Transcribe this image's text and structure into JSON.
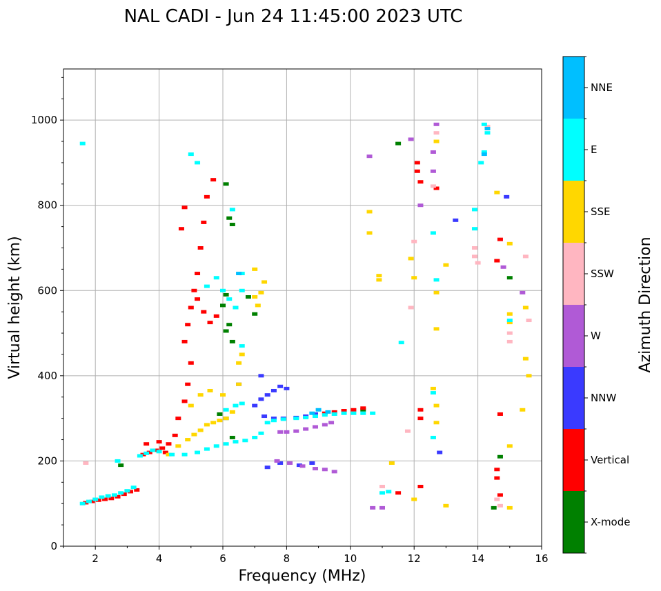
{
  "chart_data": {
    "type": "scatter",
    "title": "NAL CADI - Jun 24 11:45:00 2023 UTC",
    "xlabel": "Frequency (MHz)",
    "ylabel": "Virtual height (km)",
    "xlim": [
      1,
      16
    ],
    "ylim": [
      0,
      1120
    ],
    "xticks": [
      2,
      4,
      6,
      8,
      10,
      12,
      14,
      16
    ],
    "yticks": [
      0,
      200,
      400,
      600,
      800,
      1000
    ],
    "grid": true,
    "colorbar": {
      "label": "Azimuth Direction",
      "categories": [
        "X-mode",
        "Vertical",
        "NNW",
        "W",
        "SSW",
        "SSE",
        "E",
        "NNE"
      ],
      "colors": [
        "#008000",
        "#ff0000",
        "#3a3aff",
        "#b05ad6",
        "#ffb6c1",
        "#ffd700",
        "#00ffff",
        "#00bfff"
      ]
    },
    "series": [
      {
        "name": "X-mode",
        "points": [
          [
            6.1,
            850
          ],
          [
            6.2,
            770
          ],
          [
            6.3,
            755
          ],
          [
            6.1,
            590
          ],
          [
            6.0,
            565
          ],
          [
            6.2,
            520
          ],
          [
            6.1,
            505
          ],
          [
            6.3,
            480
          ],
          [
            6.4,
            560
          ],
          [
            7.0,
            545
          ],
          [
            6.8,
            585
          ],
          [
            5.9,
            310
          ],
          [
            6.1,
            300
          ],
          [
            6.3,
            255
          ],
          [
            14.5,
            90
          ],
          [
            14.7,
            210
          ],
          [
            15.0,
            630
          ],
          [
            11.5,
            945
          ],
          [
            10.4,
            320
          ],
          [
            2.8,
            190
          ]
        ]
      },
      {
        "name": "Vertical",
        "points": [
          [
            1.7,
            102
          ],
          [
            1.9,
            105
          ],
          [
            2.1,
            108
          ],
          [
            2.3,
            110
          ],
          [
            2.5,
            112
          ],
          [
            2.7,
            116
          ],
          [
            2.9,
            122
          ],
          [
            3.1,
            128
          ],
          [
            3.3,
            132
          ],
          [
            3.5,
            215
          ],
          [
            3.7,
            220
          ],
          [
            3.9,
            225
          ],
          [
            4.1,
            230
          ],
          [
            4.3,
            240
          ],
          [
            4.5,
            260
          ],
          [
            4.6,
            300
          ],
          [
            4.8,
            340
          ],
          [
            4.9,
            380
          ],
          [
            5.0,
            430
          ],
          [
            4.8,
            480
          ],
          [
            4.9,
            520
          ],
          [
            5.0,
            560
          ],
          [
            5.1,
            600
          ],
          [
            5.2,
            640
          ],
          [
            5.3,
            700
          ],
          [
            5.4,
            760
          ],
          [
            5.2,
            580
          ],
          [
            5.4,
            550
          ],
          [
            5.6,
            525
          ],
          [
            5.8,
            540
          ],
          [
            5.5,
            820
          ],
          [
            5.7,
            860
          ],
          [
            4.7,
            745
          ],
          [
            4.8,
            795
          ],
          [
            8.9,
            310
          ],
          [
            9.2,
            312
          ],
          [
            9.5,
            315
          ],
          [
            9.8,
            318
          ],
          [
            10.1,
            320
          ],
          [
            10.4,
            324
          ],
          [
            11.5,
            125
          ],
          [
            12.1,
            900
          ],
          [
            12.1,
            880
          ],
          [
            12.2,
            855
          ],
          [
            12.7,
            840
          ],
          [
            14.7,
            720
          ],
          [
            14.6,
            670
          ],
          [
            14.7,
            310
          ],
          [
            14.6,
            180
          ],
          [
            14.6,
            160
          ],
          [
            14.7,
            120
          ],
          [
            12.2,
            320
          ],
          [
            12.2,
            300
          ],
          [
            12.2,
            140
          ],
          [
            3.6,
            240
          ],
          [
            4.2,
            220
          ],
          [
            4.0,
            245
          ]
        ]
      },
      {
        "name": "NNW",
        "points": [
          [
            7.0,
            330
          ],
          [
            7.2,
            345
          ],
          [
            7.4,
            355
          ],
          [
            7.6,
            365
          ],
          [
            7.8,
            375
          ],
          [
            8.0,
            370
          ],
          [
            7.3,
            305
          ],
          [
            7.6,
            300
          ],
          [
            7.9,
            300
          ],
          [
            8.3,
            302
          ],
          [
            8.6,
            305
          ],
          [
            8.9,
            310
          ],
          [
            7.4,
            185
          ],
          [
            7.8,
            195
          ],
          [
            8.4,
            190
          ],
          [
            8.8,
            195
          ],
          [
            13.3,
            765
          ],
          [
            14.9,
            820
          ],
          [
            12.8,
            220
          ],
          [
            6.5,
            380
          ],
          [
            7.2,
            400
          ]
        ]
      },
      {
        "name": "W",
        "points": [
          [
            7.8,
            268
          ],
          [
            8.0,
            268
          ],
          [
            8.3,
            270
          ],
          [
            8.6,
            275
          ],
          [
            8.9,
            280
          ],
          [
            9.2,
            285
          ],
          [
            9.4,
            290
          ],
          [
            7.7,
            200
          ],
          [
            8.1,
            195
          ],
          [
            8.5,
            188
          ],
          [
            8.9,
            182
          ],
          [
            9.2,
            180
          ],
          [
            9.5,
            175
          ],
          [
            10.6,
            915
          ],
          [
            11.9,
            955
          ],
          [
            12.2,
            800
          ],
          [
            12.6,
            925
          ],
          [
            14.8,
            655
          ],
          [
            15.4,
            595
          ],
          [
            10.7,
            90
          ],
          [
            11.0,
            90
          ],
          [
            12.6,
            880
          ],
          [
            12.7,
            990
          ]
        ]
      },
      {
        "name": "SSW",
        "points": [
          [
            1.7,
            195
          ],
          [
            12.0,
            715
          ],
          [
            11.9,
            560
          ],
          [
            12.6,
            845
          ],
          [
            13.9,
            700
          ],
          [
            13.9,
            680
          ],
          [
            14.0,
            665
          ],
          [
            15.0,
            480
          ],
          [
            15.0,
            500
          ],
          [
            15.5,
            680
          ],
          [
            15.6,
            530
          ],
          [
            11.8,
            270
          ],
          [
            11.0,
            140
          ],
          [
            14.6,
            110
          ],
          [
            14.7,
            95
          ],
          [
            12.7,
            970
          ],
          [
            14.3,
            985
          ]
        ]
      },
      {
        "name": "SSE",
        "points": [
          [
            4.3,
            215
          ],
          [
            4.6,
            235
          ],
          [
            4.9,
            250
          ],
          [
            5.1,
            262
          ],
          [
            5.3,
            272
          ],
          [
            5.5,
            285
          ],
          [
            5.7,
            290
          ],
          [
            5.9,
            295
          ],
          [
            6.1,
            300
          ],
          [
            6.3,
            315
          ],
          [
            5.0,
            330
          ],
          [
            5.3,
            355
          ],
          [
            5.6,
            365
          ],
          [
            6.0,
            355
          ],
          [
            6.5,
            380
          ],
          [
            6.5,
            430
          ],
          [
            6.6,
            450
          ],
          [
            7.0,
            585
          ],
          [
            7.1,
            565
          ],
          [
            7.2,
            595
          ],
          [
            7.3,
            620
          ],
          [
            7.0,
            650
          ],
          [
            10.6,
            785
          ],
          [
            10.6,
            735
          ],
          [
            10.9,
            635
          ],
          [
            10.9,
            625
          ],
          [
            11.9,
            675
          ],
          [
            12.0,
            630
          ],
          [
            12.7,
            950
          ],
          [
            12.7,
            595
          ],
          [
            12.7,
            510
          ],
          [
            13.0,
            660
          ],
          [
            12.7,
            330
          ],
          [
            12.7,
            290
          ],
          [
            15.0,
            710
          ],
          [
            15.0,
            545
          ],
          [
            15.0,
            525
          ],
          [
            15.5,
            560
          ],
          [
            15.5,
            440
          ],
          [
            15.6,
            400
          ],
          [
            15.4,
            320
          ],
          [
            15.0,
            235
          ],
          [
            15.0,
            90
          ],
          [
            13.0,
            95
          ],
          [
            14.6,
            830
          ],
          [
            12.0,
            110
          ],
          [
            11.3,
            195
          ],
          [
            12.6,
            370
          ]
        ]
      },
      {
        "name": "E",
        "points": [
          [
            1.6,
            100
          ],
          [
            1.8,
            105
          ],
          [
            2.0,
            110
          ],
          [
            2.2,
            115
          ],
          [
            2.4,
            118
          ],
          [
            2.6,
            120
          ],
          [
            2.8,
            125
          ],
          [
            3.0,
            130
          ],
          [
            3.2,
            138
          ],
          [
            3.4,
            212
          ],
          [
            3.6,
            218
          ],
          [
            3.8,
            225
          ],
          [
            4.0,
            222
          ],
          [
            4.4,
            215
          ],
          [
            4.8,
            215
          ],
          [
            5.2,
            220
          ],
          [
            5.5,
            228
          ],
          [
            5.8,
            235
          ],
          [
            6.1,
            240
          ],
          [
            6.4,
            245
          ],
          [
            6.7,
            248
          ],
          [
            7.0,
            255
          ],
          [
            7.2,
            265
          ],
          [
            7.4,
            290
          ],
          [
            7.6,
            295
          ],
          [
            7.9,
            298
          ],
          [
            8.3,
            300
          ],
          [
            8.6,
            302
          ],
          [
            8.9,
            305
          ],
          [
            9.2,
            308
          ],
          [
            9.5,
            310
          ],
          [
            9.8,
            312
          ],
          [
            10.1,
            312
          ],
          [
            10.4,
            312
          ],
          [
            10.7,
            312
          ],
          [
            5.5,
            610
          ],
          [
            5.8,
            630
          ],
          [
            6.0,
            600
          ],
          [
            6.2,
            580
          ],
          [
            6.4,
            560
          ],
          [
            6.6,
            600
          ],
          [
            6.6,
            640
          ],
          [
            6.1,
            320
          ],
          [
            6.4,
            330
          ],
          [
            6.6,
            335
          ],
          [
            1.6,
            945
          ],
          [
            5.0,
            920
          ],
          [
            5.2,
            900
          ],
          [
            6.3,
            790
          ],
          [
            14.2,
            990
          ],
          [
            14.3,
            970
          ],
          [
            14.1,
            900
          ],
          [
            14.2,
            925
          ],
          [
            13.9,
            790
          ],
          [
            13.9,
            745
          ],
          [
            12.6,
            735
          ],
          [
            12.7,
            625
          ],
          [
            12.6,
            360
          ],
          [
            12.6,
            255
          ],
          [
            11.2,
            128
          ],
          [
            11.0,
            125
          ],
          [
            15.0,
            530
          ],
          [
            11.6,
            478
          ],
          [
            6.6,
            470
          ],
          [
            2.7,
            200
          ]
        ]
      },
      {
        "name": "NNE",
        "points": [
          [
            9.0,
            320
          ],
          [
            9.3,
            315
          ],
          [
            8.8,
            312
          ],
          [
            6.5,
            640
          ],
          [
            14.3,
            980
          ],
          [
            14.2,
            920
          ]
        ]
      }
    ]
  }
}
